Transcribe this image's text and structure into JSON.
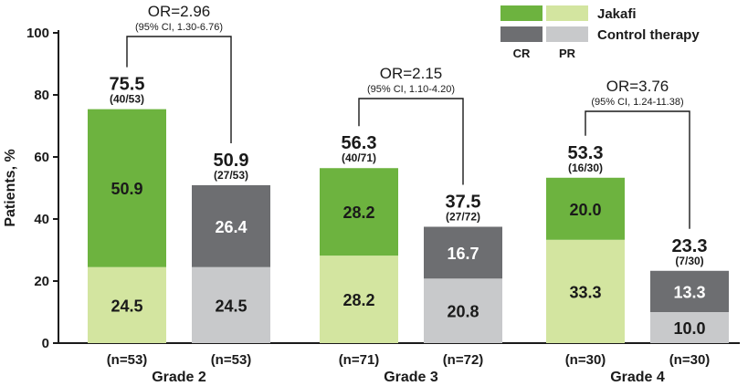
{
  "chart_data": {
    "type": "bar",
    "stacked": true,
    "ylabel": "Patients, %",
    "ylim": [
      0,
      100
    ],
    "yticks": [
      "0",
      "20",
      "40",
      "60",
      "80",
      "100"
    ],
    "grid": false,
    "legend": {
      "placement": "top-right",
      "col_headers": [
        "CR",
        "PR"
      ],
      "rows": [
        {
          "label": "Jakafi",
          "cr_color": "#6db33f",
          "pr_color": "#d3e5a0"
        },
        {
          "label": "Control therapy",
          "cr_color": "#6d6e71",
          "pr_color": "#c8c9cb"
        }
      ]
    },
    "groups": [
      {
        "label": "Grade 2",
        "odds_ratio": {
          "or": "OR=2.96",
          "ci": "(95% CI, 1.30-6.76)"
        },
        "bars": [
          {
            "arm": "Jakafi",
            "n": "(n=53)",
            "pr": 24.5,
            "cr": 50.9,
            "pr_label": "24.5",
            "cr_label": "50.9",
            "total": "75.5",
            "frac": "(40/53)"
          },
          {
            "arm": "Control therapy",
            "n": "(n=53)",
            "pr": 24.5,
            "cr": 26.4,
            "pr_label": "24.5",
            "cr_label": "26.4",
            "total": "50.9",
            "frac": "(27/53)"
          }
        ]
      },
      {
        "label": "Grade 3",
        "odds_ratio": {
          "or": "OR=2.15",
          "ci": "(95% CI, 1.10-4.20)"
        },
        "bars": [
          {
            "arm": "Jakafi",
            "n": "(n=71)",
            "pr": 28.2,
            "cr": 28.2,
            "pr_label": "28.2",
            "cr_label": "28.2",
            "total": "56.3",
            "frac": "(40/71)"
          },
          {
            "arm": "Control therapy",
            "n": "(n=72)",
            "pr": 20.8,
            "cr": 16.7,
            "pr_label": "20.8",
            "cr_label": "16.7",
            "total": "37.5",
            "frac": "(27/72)"
          }
        ]
      },
      {
        "label": "Grade 4",
        "odds_ratio": {
          "or": "OR=3.76",
          "ci": "(95% CI, 1.24-11.38)"
        },
        "bars": [
          {
            "arm": "Jakafi",
            "n": "(n=30)",
            "pr": 33.3,
            "cr": 20.0,
            "pr_label": "33.3",
            "cr_label": "20.0",
            "total": "53.3",
            "frac": "(16/30)"
          },
          {
            "arm": "Control therapy",
            "n": "(n=30)",
            "pr": 10.0,
            "cr": 13.3,
            "pr_label": "10.0",
            "cr_label": "13.3",
            "total": "23.3",
            "frac": "(7/30)"
          }
        ]
      }
    ]
  }
}
